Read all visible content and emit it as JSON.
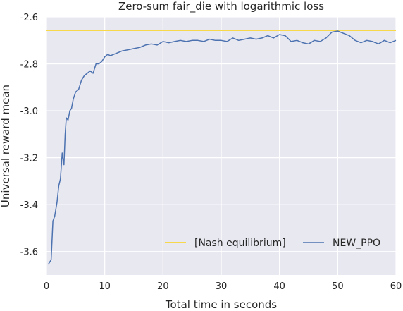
{
  "chart_data": {
    "type": "line",
    "title": "Zero-sum fair_die with logarithmic loss",
    "xlabel": "Total time in seconds",
    "ylabel": "Universal reward mean",
    "xlim": [
      0,
      60
    ],
    "ylim": [
      -3.7,
      -2.6
    ],
    "xticks": [
      0,
      10,
      20,
      30,
      40,
      50,
      60
    ],
    "xtick_labels": [
      "0",
      "10",
      "20",
      "30",
      "40",
      "50",
      "60"
    ],
    "yticks": [
      -3.6,
      -3.4,
      -3.2,
      -3.0,
      -2.8,
      -2.6
    ],
    "ytick_labels": [
      "-3.6",
      "-3.4",
      "-3.2",
      "-3.0",
      "-2.8",
      "-2.6"
    ],
    "grid": true,
    "legend_position": "lower-right",
    "background": "#e8e8f1",
    "series": [
      {
        "name": "[Nash equilibrium]",
        "color": "#f7d84a",
        "x": [
          0,
          60
        ],
        "y": [
          -2.657,
          -2.657
        ]
      },
      {
        "name": "NEW_PPO",
        "color": "#4c72b0",
        "x": [
          0.3,
          0.8,
          1.1,
          1.4,
          1.8,
          2.1,
          2.4,
          2.7,
          3.0,
          3.2,
          3.4,
          3.7,
          4.0,
          4.3,
          4.6,
          5.0,
          5.5,
          6.0,
          6.5,
          7.0,
          7.5,
          8.0,
          8.5,
          9.0,
          9.5,
          10.0,
          10.5,
          11.0,
          11.5,
          12.0,
          13.0,
          14.0,
          15.0,
          16.0,
          17.0,
          18.0,
          19.0,
          20.0,
          21.0,
          22.0,
          23.0,
          24.0,
          25.0,
          26.0,
          27.0,
          28.0,
          29.0,
          30.0,
          31.0,
          32.0,
          33.0,
          34.0,
          35.0,
          36.0,
          37.0,
          38.0,
          39.0,
          40.0,
          41.0,
          42.0,
          43.0,
          44.0,
          45.0,
          46.0,
          47.0,
          48.0,
          49.0,
          50.0,
          51.0,
          52.0,
          53.0,
          54.0,
          55.0,
          56.0,
          57.0,
          58.0,
          59.0,
          60.0
        ],
        "y": [
          -3.655,
          -3.635,
          -3.47,
          -3.45,
          -3.39,
          -3.32,
          -3.29,
          -3.18,
          -3.23,
          -3.1,
          -3.03,
          -3.04,
          -3.0,
          -2.99,
          -2.95,
          -2.92,
          -2.91,
          -2.87,
          -2.85,
          -2.84,
          -2.83,
          -2.84,
          -2.8,
          -2.8,
          -2.79,
          -2.77,
          -2.76,
          -2.765,
          -2.76,
          -2.755,
          -2.745,
          -2.74,
          -2.735,
          -2.73,
          -2.72,
          -2.715,
          -2.72,
          -2.705,
          -2.71,
          -2.705,
          -2.7,
          -2.705,
          -2.7,
          -2.7,
          -2.705,
          -2.695,
          -2.7,
          -2.7,
          -2.705,
          -2.69,
          -2.7,
          -2.695,
          -2.69,
          -2.695,
          -2.69,
          -2.68,
          -2.69,
          -2.675,
          -2.68,
          -2.705,
          -2.7,
          -2.71,
          -2.715,
          -2.7,
          -2.705,
          -2.69,
          -2.665,
          -2.66,
          -2.67,
          -2.68,
          -2.7,
          -2.71,
          -2.7,
          -2.705,
          -2.715,
          -2.7,
          -2.71,
          -2.7
        ]
      }
    ]
  }
}
